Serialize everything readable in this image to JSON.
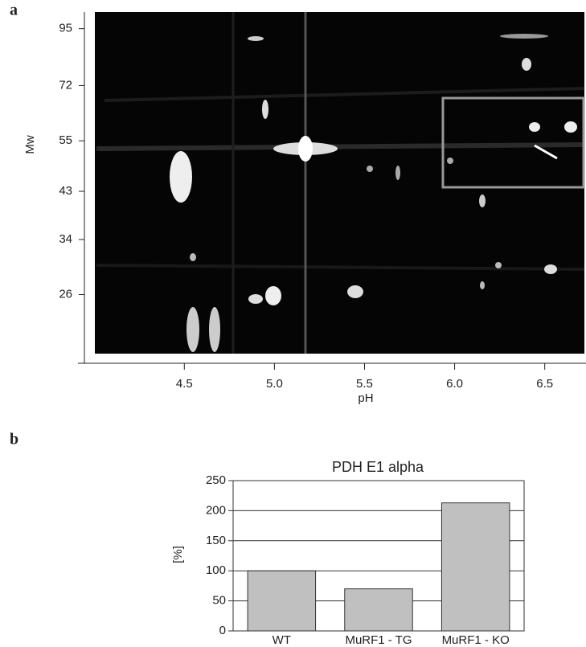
{
  "chart_data": [
    {
      "type": "gel",
      "panel_label": "a",
      "xlabel": "pH",
      "ylabel": "Mw",
      "xlim": [
        3.91,
        6.72
      ],
      "xticks": [
        4.5,
        {
          "value": 5,
          "label": "5.0"
        },
        5.5,
        {
          "value": 6,
          "label": "6.0"
        },
        6.5
      ],
      "ylim": [
        18.6,
        103
      ],
      "log_scale": true,
      "yticks": [
        95,
        72,
        55,
        43,
        34,
        26
      ]
    },
    {
      "type": "bar",
      "panel_label": "b",
      "title": "PDH E1 alpha",
      "ylabel": "[%]",
      "categories": [
        "WT",
        "MuRF1 - TG",
        "MuRF1 - KO"
      ],
      "values": [
        100,
        70,
        213
      ],
      "color": "#c0c0c0",
      "ylim": [
        0,
        250
      ],
      "yticks": [
        0,
        50,
        100,
        150,
        200,
        250
      ],
      "grid": true
    }
  ]
}
